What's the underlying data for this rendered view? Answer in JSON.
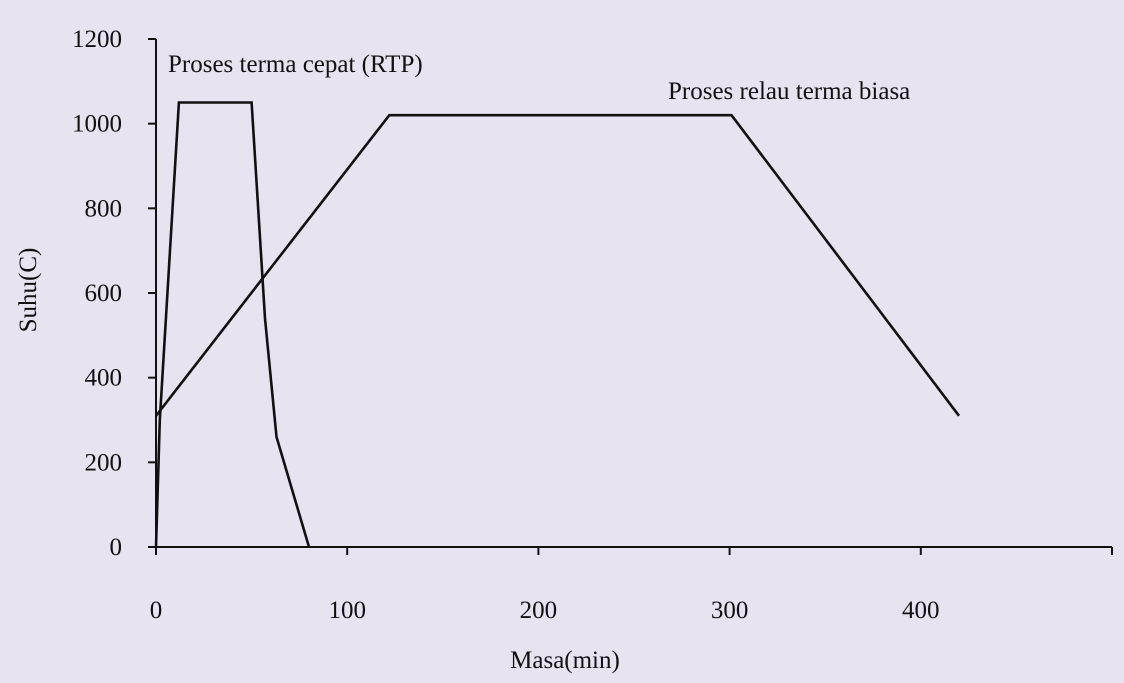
{
  "chart_data": {
    "type": "line",
    "xlabel": "Masa(min)",
    "ylabel": "Suhu(C)",
    "xlim": [
      0,
      500
    ],
    "ylim": [
      0,
      1200
    ],
    "x_ticks": [
      0,
      100,
      200,
      300,
      400
    ],
    "y_ticks": [
      0,
      200,
      400,
      600,
      800,
      1000,
      1200
    ],
    "grid": false,
    "series": [
      {
        "name": "Proses terma cepat (RTP)",
        "x": [
          0,
          2,
          12,
          50,
          57,
          63,
          80
        ],
        "y": [
          0,
          300,
          1050,
          1050,
          540,
          260,
          0
        ]
      },
      {
        "name": "Proses relau terma biasa",
        "x": [
          0,
          122,
          301,
          420
        ],
        "y": [
          310,
          1020,
          1020,
          310
        ]
      }
    ]
  }
}
